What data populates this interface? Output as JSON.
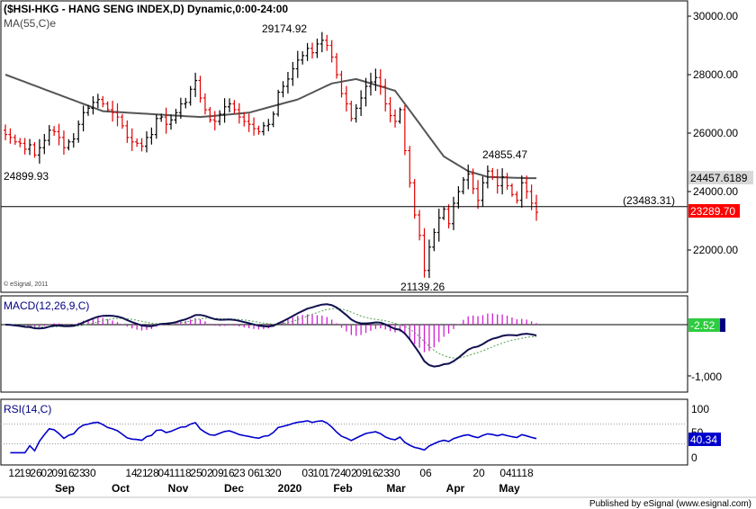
{
  "chart_data": [
    {
      "type": "candlestick",
      "title": "($HSI-HKG - HANG SENG INDEX,D) Dynamic,0:00-24:00",
      "series_label": "MA(55,C)e",
      "yticks": [
        "30000.00",
        "28000.00",
        "26000.00",
        "24000.00",
        "22000.00"
      ],
      "ylim": [
        20800,
        30300
      ],
      "annotations": [
        {
          "text": "29174.92",
          "x_index": 52,
          "y": 29175
        },
        {
          "text": "24899.93",
          "x_index": 0,
          "y": 24900
        },
        {
          "text": "21139.26",
          "x_index": 73,
          "y": 21139
        },
        {
          "text": "24855.47",
          "x_index": 89,
          "y": 24855
        }
      ],
      "hline": {
        "value": 23483.31,
        "label": "(23483.31)"
      },
      "last_close": {
        "value": 23289.7,
        "label": "23289.70",
        "color": "#ff0000"
      },
      "ma_last": {
        "value": 24457.62,
        "label": "24457.6189"
      },
      "closes": [
        25950,
        25850,
        25700,
        25650,
        25450,
        25600,
        25250,
        25500,
        25750,
        26100,
        26050,
        25850,
        25500,
        25700,
        25800,
        26300,
        26700,
        26850,
        27050,
        27150,
        27000,
        26800,
        26700,
        26550,
        26250,
        25850,
        25700,
        25650,
        25550,
        25850,
        25950,
        26500,
        26550,
        26300,
        26450,
        26700,
        27000,
        27050,
        27500,
        27800,
        27200,
        26800,
        26450,
        26400,
        26650,
        26900,
        27000,
        26800,
        26550,
        26400,
        26300,
        26150,
        26050,
        26250,
        26300,
        26650,
        27400,
        27600,
        27850,
        28200,
        28500,
        28650,
        28900,
        28750,
        29050,
        29175,
        29000,
        28600,
        28000,
        27350,
        27000,
        26500,
        26850,
        27200,
        27600,
        27750,
        27900,
        27600,
        27000,
        26600,
        26400,
        26800,
        25400,
        24300,
        23200,
        22500,
        21300,
        22100,
        22600,
        23100,
        23400,
        22900,
        23600,
        24000,
        24400,
        24600,
        24100,
        23700,
        24300,
        24700,
        24500,
        24200,
        24500,
        24200,
        23900,
        23700,
        24300,
        24000,
        23600,
        23290
      ],
      "ma_anchors": [
        [
          0,
          28000
        ],
        [
          20,
          26750
        ],
        [
          40,
          26550
        ],
        [
          50,
          26700
        ],
        [
          60,
          27150
        ],
        [
          67,
          27700
        ],
        [
          72,
          27850
        ],
        [
          80,
          27450
        ],
        [
          90,
          25200
        ],
        [
          95,
          24700
        ],
        [
          99,
          24500
        ],
        [
          107,
          24458
        ]
      ]
    },
    {
      "type": "line",
      "title": "MACD(12,26,9,C)",
      "yticks": [
        "-1,000"
      ],
      "last_value": {
        "value": -2.52,
        "label": "-2.52"
      },
      "ylim": [
        -2500,
        1100
      ]
    },
    {
      "type": "line",
      "title": "RSI(14,C)",
      "yticks": [
        "100",
        "50",
        "0"
      ],
      "levels": [
        70,
        30
      ],
      "last_value": {
        "value": 40.34,
        "label": "40.34"
      },
      "ylim": [
        0,
        100
      ]
    }
  ],
  "xaxis": {
    "day_labels": [
      "12",
      "19",
      "26",
      "02",
      "09",
      "16",
      "23",
      "30",
      "14",
      "21",
      "28",
      "04",
      "11",
      "18",
      "25",
      "02",
      "09",
      "16",
      "23",
      "06",
      "13",
      "20",
      "03",
      "10",
      "17",
      "24",
      "02",
      "09",
      "16",
      "23",
      "30",
      "06",
      "20",
      "04",
      "11",
      "18"
    ],
    "month_labels": [
      "Sep",
      "Oct",
      "Nov",
      "Dec",
      "2020",
      "Feb",
      "Mar",
      "Apr",
      "May"
    ]
  },
  "watermark": "© eSignal, 2011",
  "footer": "Published by eSignal (www.esignal.com)"
}
